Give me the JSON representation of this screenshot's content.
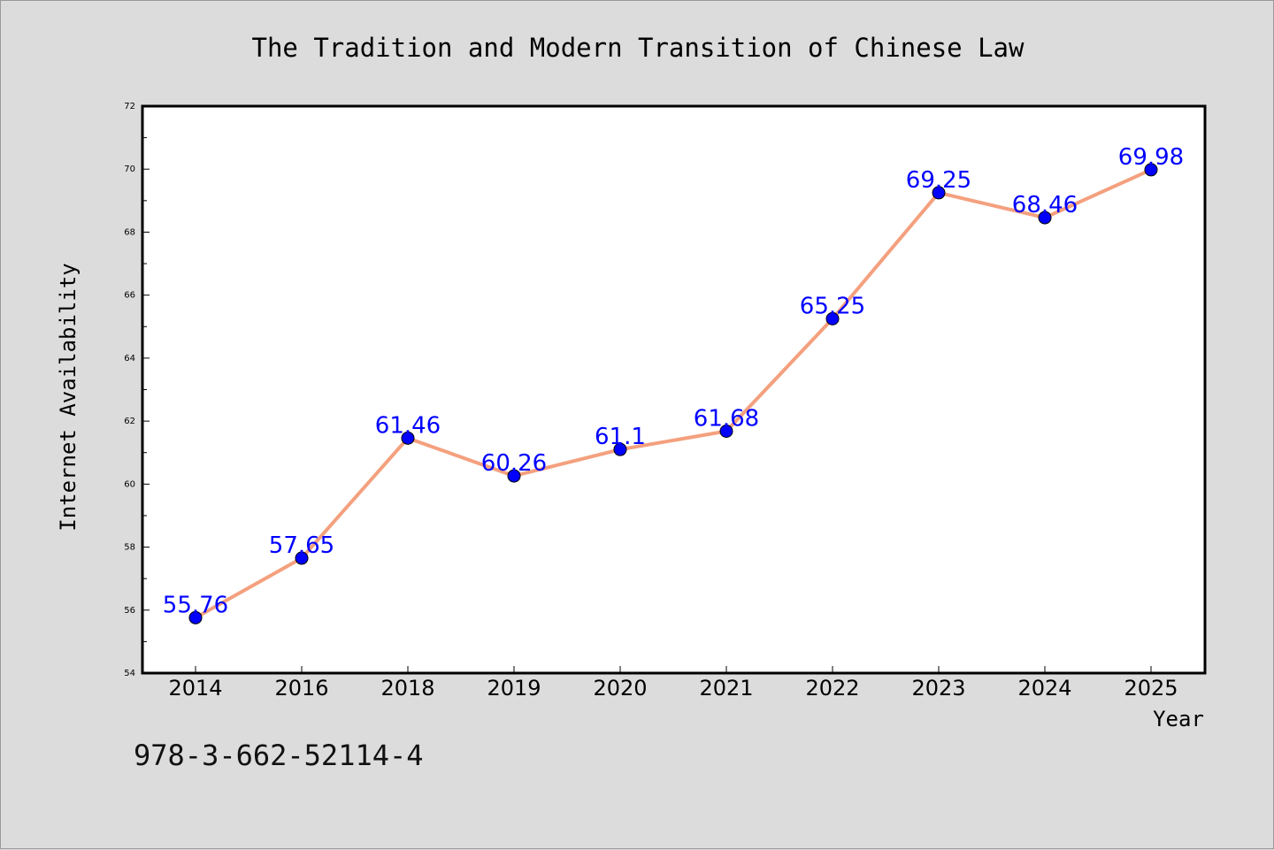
{
  "chart_data": {
    "type": "line",
    "title": "The Tradition and Modern Transition of Chinese Law",
    "xlabel": "Year",
    "ylabel": "Internet Availability",
    "categories": [
      "2014",
      "2016",
      "2018",
      "2019",
      "2020",
      "2021",
      "2022",
      "2023",
      "2024",
      "2025"
    ],
    "series": [
      {
        "values": [
          55.76,
          57.65,
          61.46,
          60.26,
          61.1,
          61.68,
          65.25,
          69.25,
          68.46,
          69.98
        ],
        "line_color": "#f4a07e",
        "marker_color": "#0000ff"
      }
    ],
    "data_labels": [
      "55.76",
      "57.65",
      "61.46",
      "60.26",
      "61.1",
      "61.68",
      "65.25",
      "69.25",
      "68.46",
      "69.98"
    ],
    "ylim": [
      54,
      72
    ],
    "yticks": [
      "54",
      "56",
      "58",
      "60",
      "62",
      "64",
      "66",
      "68",
      "70",
      "72"
    ],
    "grid": false,
    "legend": "none"
  },
  "footer": {
    "isbn": "978-3-662-52114-4"
  }
}
